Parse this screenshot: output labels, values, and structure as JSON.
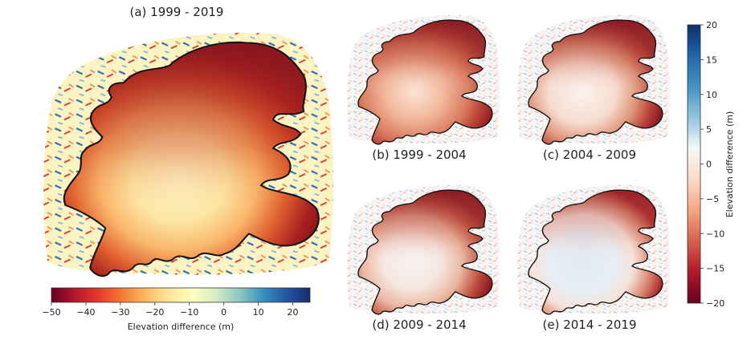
{
  "figure": {
    "panels": [
      {
        "id": "a",
        "title": "(a) 1999 - 2019",
        "colorbar": "main"
      },
      {
        "id": "b",
        "title": "(b) 1999 - 2004",
        "colorbar": "side"
      },
      {
        "id": "c",
        "title": "(c) 2004 - 2009",
        "colorbar": "side"
      },
      {
        "id": "d",
        "title": "(d) 2009 - 2014",
        "colorbar": "side"
      },
      {
        "id": "e",
        "title": "(e) 2014 - 2019",
        "colorbar": "side"
      }
    ]
  },
  "chart_data": [
    {
      "type": "heatmap",
      "title": "(a) 1999 - 2019",
      "colorbar": {
        "orientation": "horizontal",
        "label": "Elevation difference (m)",
        "range": [
          -50,
          25
        ],
        "ticks": [
          -50,
          -40,
          -30,
          -20,
          -10,
          0,
          10,
          20
        ],
        "tick_labels": [
          "−50",
          "−40",
          "−30",
          "−20",
          "−10",
          "0",
          "10",
          "20"
        ],
        "colormap": "RdYlBu",
        "colors": [
          "#67001f",
          "#b2182b",
          "#e8392a",
          "#f57a35",
          "#fdb863",
          "#fee79a",
          "#fefec0",
          "#d6ecc3",
          "#8cc7bf",
          "#3b8fc0",
          "#2356a0",
          "#1a2a6c"
        ]
      },
      "description": "Elevation change map of ice cap, strong thinning (dark red) at margins, mild change (pale yellow) in interior"
    },
    {
      "type": "heatmap",
      "title": "(b) 1999 - 2004",
      "description": "Red thinning over most of ice cap, strongest at margins"
    },
    {
      "type": "heatmap",
      "title": "(c) 2004 - 2009",
      "description": "Thinning at margins, near-zero change in interior"
    },
    {
      "type": "heatmap",
      "title": "(d) 2009 - 2014",
      "description": "Thinning at margins, interior near zero with slight positive patches"
    },
    {
      "type": "heatmap",
      "title": "(e) 2014 - 2019",
      "description": "Thinning mostly along northern and southeastern margins, slight thickening (blue) in interior"
    },
    {
      "type": "heatmap",
      "colorbar": {
        "orientation": "vertical",
        "label": "Elevation difference (m)",
        "range": [
          -20,
          20
        ],
        "ticks": [
          20,
          15,
          10,
          5,
          0,
          -5,
          -10,
          -15,
          -20
        ],
        "tick_labels": [
          "20",
          "15",
          "10",
          "5",
          "0",
          "−5",
          "−10",
          "−15",
          "−20"
        ],
        "colormap": "RdBu",
        "colors": [
          "#08306b",
          "#2166ac",
          "#4393c3",
          "#92c5de",
          "#f7f7f7",
          "#fddbc7",
          "#f4a582",
          "#d6604d",
          "#b2182b",
          "#67001f"
        ]
      }
    }
  ]
}
